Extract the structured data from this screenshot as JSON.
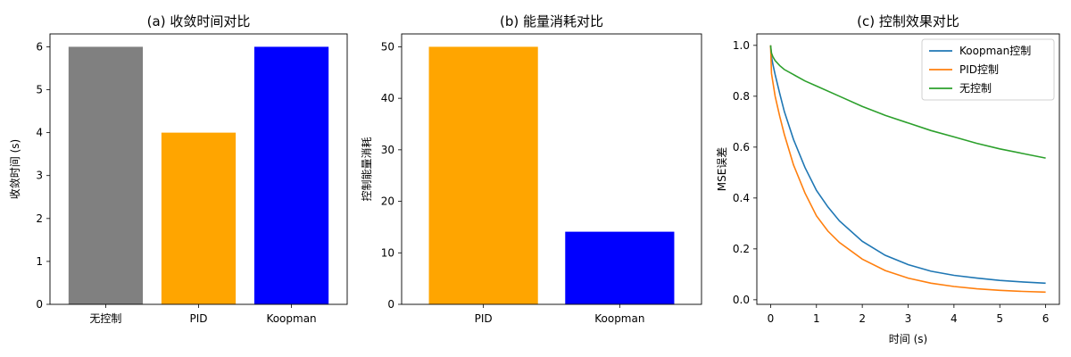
{
  "chart_data": [
    {
      "type": "bar",
      "title": "(a) 收敛时间对比",
      "xlabel": "",
      "ylabel": "收敛时间 (s)",
      "categories": [
        "无控制",
        "PID",
        "Koopman"
      ],
      "values": [
        6.0,
        4.0,
        6.0
      ],
      "colors": [
        "#808080",
        "#FFA500",
        "#0000FF"
      ],
      "ylim": [
        0,
        6.3
      ],
      "yticks": [
        0,
        1,
        2,
        3,
        4,
        5,
        6
      ],
      "grid": false
    },
    {
      "type": "bar",
      "title": "(b) 能量消耗对比",
      "xlabel": "",
      "ylabel": "控制能量消耗",
      "categories": [
        "PID",
        "Koopman"
      ],
      "values": [
        50.0,
        14.1
      ],
      "colors": [
        "#FFA500",
        "#0000FF"
      ],
      "ylim": [
        0,
        52.5
      ],
      "yticks": [
        0,
        10,
        20,
        30,
        40,
        50
      ],
      "grid": false
    },
    {
      "type": "line",
      "title": "(c) 控制效果对比",
      "xlabel": "时间 (s)",
      "ylabel": "MSE误差",
      "xlim": [
        -0.3,
        6.3
      ],
      "ylim": [
        -0.018,
        1.045
      ],
      "xticks": [
        0,
        1,
        2,
        3,
        4,
        5,
        6
      ],
      "yticks": [
        0.0,
        0.2,
        0.4,
        0.6,
        0.8,
        1.0
      ],
      "legend_position": "top-right",
      "grid": false,
      "series": [
        {
          "name": "Koopman控制",
          "color": "#1f77b4",
          "x": [
            0,
            0.02,
            0.05,
            0.1,
            0.2,
            0.3,
            0.5,
            0.75,
            1.0,
            1.25,
            1.5,
            2.0,
            2.5,
            3.0,
            3.5,
            4.0,
            4.5,
            5.0,
            5.5,
            6.0
          ],
          "y": [
            1.0,
            0.955,
            0.925,
            0.885,
            0.81,
            0.74,
            0.63,
            0.52,
            0.43,
            0.365,
            0.31,
            0.23,
            0.175,
            0.138,
            0.112,
            0.096,
            0.085,
            0.076,
            0.07,
            0.065
          ]
        },
        {
          "name": "PID控制",
          "color": "#ff7f0e",
          "x": [
            0,
            0.02,
            0.05,
            0.1,
            0.2,
            0.3,
            0.5,
            0.75,
            1.0,
            1.25,
            1.5,
            2.0,
            2.5,
            3.0,
            3.5,
            4.0,
            4.5,
            5.0,
            5.5,
            6.0
          ],
          "y": [
            1.0,
            0.89,
            0.855,
            0.8,
            0.72,
            0.65,
            0.53,
            0.42,
            0.33,
            0.27,
            0.225,
            0.16,
            0.115,
            0.085,
            0.065,
            0.052,
            0.043,
            0.037,
            0.033,
            0.03
          ]
        },
        {
          "name": "无控制",
          "color": "#2ca02c",
          "x": [
            0,
            0.02,
            0.05,
            0.1,
            0.2,
            0.3,
            0.5,
            0.75,
            1.0,
            1.5,
            2.0,
            2.5,
            3.0,
            3.5,
            4.0,
            4.5,
            5.0,
            5.5,
            6.0
          ],
          "y": [
            1.0,
            0.97,
            0.955,
            0.94,
            0.92,
            0.905,
            0.885,
            0.86,
            0.84,
            0.8,
            0.76,
            0.725,
            0.695,
            0.665,
            0.64,
            0.615,
            0.593,
            0.575,
            0.557
          ]
        }
      ]
    }
  ]
}
